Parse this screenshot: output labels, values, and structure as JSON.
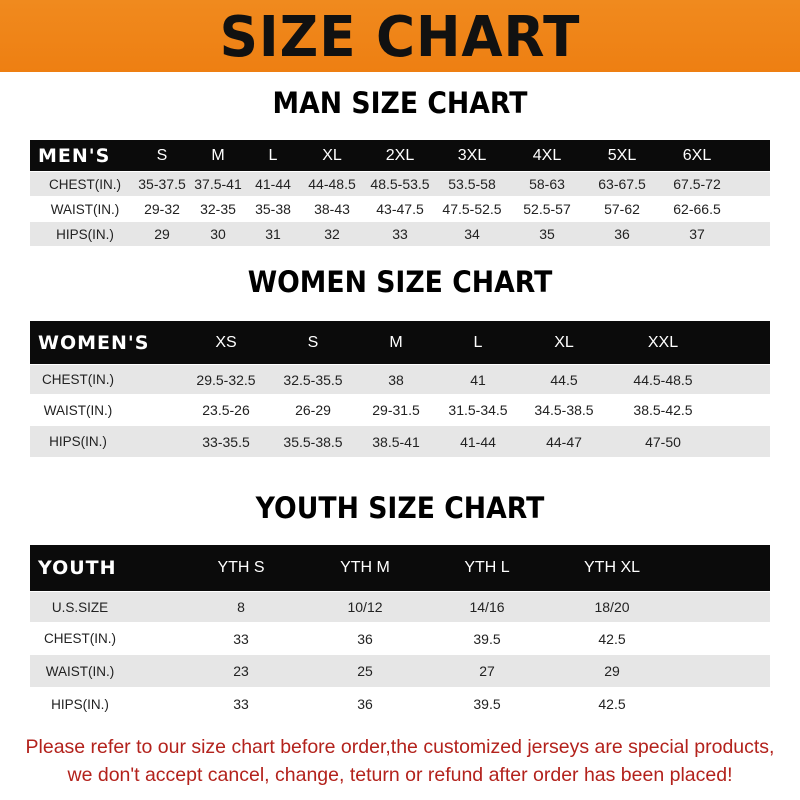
{
  "title": "SIZE CHART",
  "colors": {
    "banner": "#ef8418",
    "header_row": "#0b0b0b",
    "stripe": "#e6e6e6",
    "notice": "#b3221c"
  },
  "men": {
    "title": "MAN SIZE CHART",
    "header": [
      "MEN'S",
      "S",
      "M",
      "L",
      "XL",
      "2XL",
      "3XL",
      "4XL",
      "5XL",
      "6XL"
    ],
    "rows": [
      [
        "CHEST(IN.)",
        "35-37.5",
        "37.5-41",
        "41-44",
        "44-48.5",
        "48.5-53.5",
        "53.5-58",
        "58-63",
        "63-67.5",
        "67.5-72"
      ],
      [
        "WAIST(IN.)",
        "29-32",
        "32-35",
        "35-38",
        "38-43",
        "43-47.5",
        "47.5-52.5",
        "52.5-57",
        "57-62",
        "62-66.5"
      ],
      [
        "HIPS(IN.)",
        "29",
        "30",
        "31",
        "32",
        "33",
        "34",
        "35",
        "36",
        "37"
      ]
    ]
  },
  "women": {
    "title": "WOMEN SIZE CHART",
    "header": [
      "WOMEN'S",
      "XS",
      "S",
      "M",
      "L",
      "XL",
      "XXL"
    ],
    "rows": [
      [
        "CHEST(IN.)",
        "29.5-32.5",
        "32.5-35.5",
        "38",
        "41",
        "44.5",
        "44.5-48.5"
      ],
      [
        "WAIST(IN.)",
        "23.5-26",
        "26-29",
        "29-31.5",
        "31.5-34.5",
        "34.5-38.5",
        "38.5-42.5"
      ],
      [
        "HIPS(IN.)",
        "33-35.5",
        "35.5-38.5",
        "38.5-41",
        "41-44",
        "44-47",
        "47-50"
      ]
    ]
  },
  "youth": {
    "title": "YOUTH SIZE CHART",
    "header": [
      "YOUTH",
      "YTH S",
      "YTH M",
      "YTH L",
      "YTH XL"
    ],
    "rows": [
      [
        "U.S.SIZE",
        "8",
        "10/12",
        "14/16",
        "18/20"
      ],
      [
        "CHEST(IN.)",
        "33",
        "36",
        "39.5",
        "42.5"
      ],
      [
        "WAIST(IN.)",
        "23",
        "25",
        "27",
        "29"
      ],
      [
        "HIPS(IN.)",
        "33",
        "36",
        "39.5",
        "42.5"
      ]
    ]
  },
  "notice": [
    "Please refer to our size chart before order,the customized jerseys are special products,",
    "we don't accept cancel, change, teturn or refund after order has been placed!"
  ]
}
